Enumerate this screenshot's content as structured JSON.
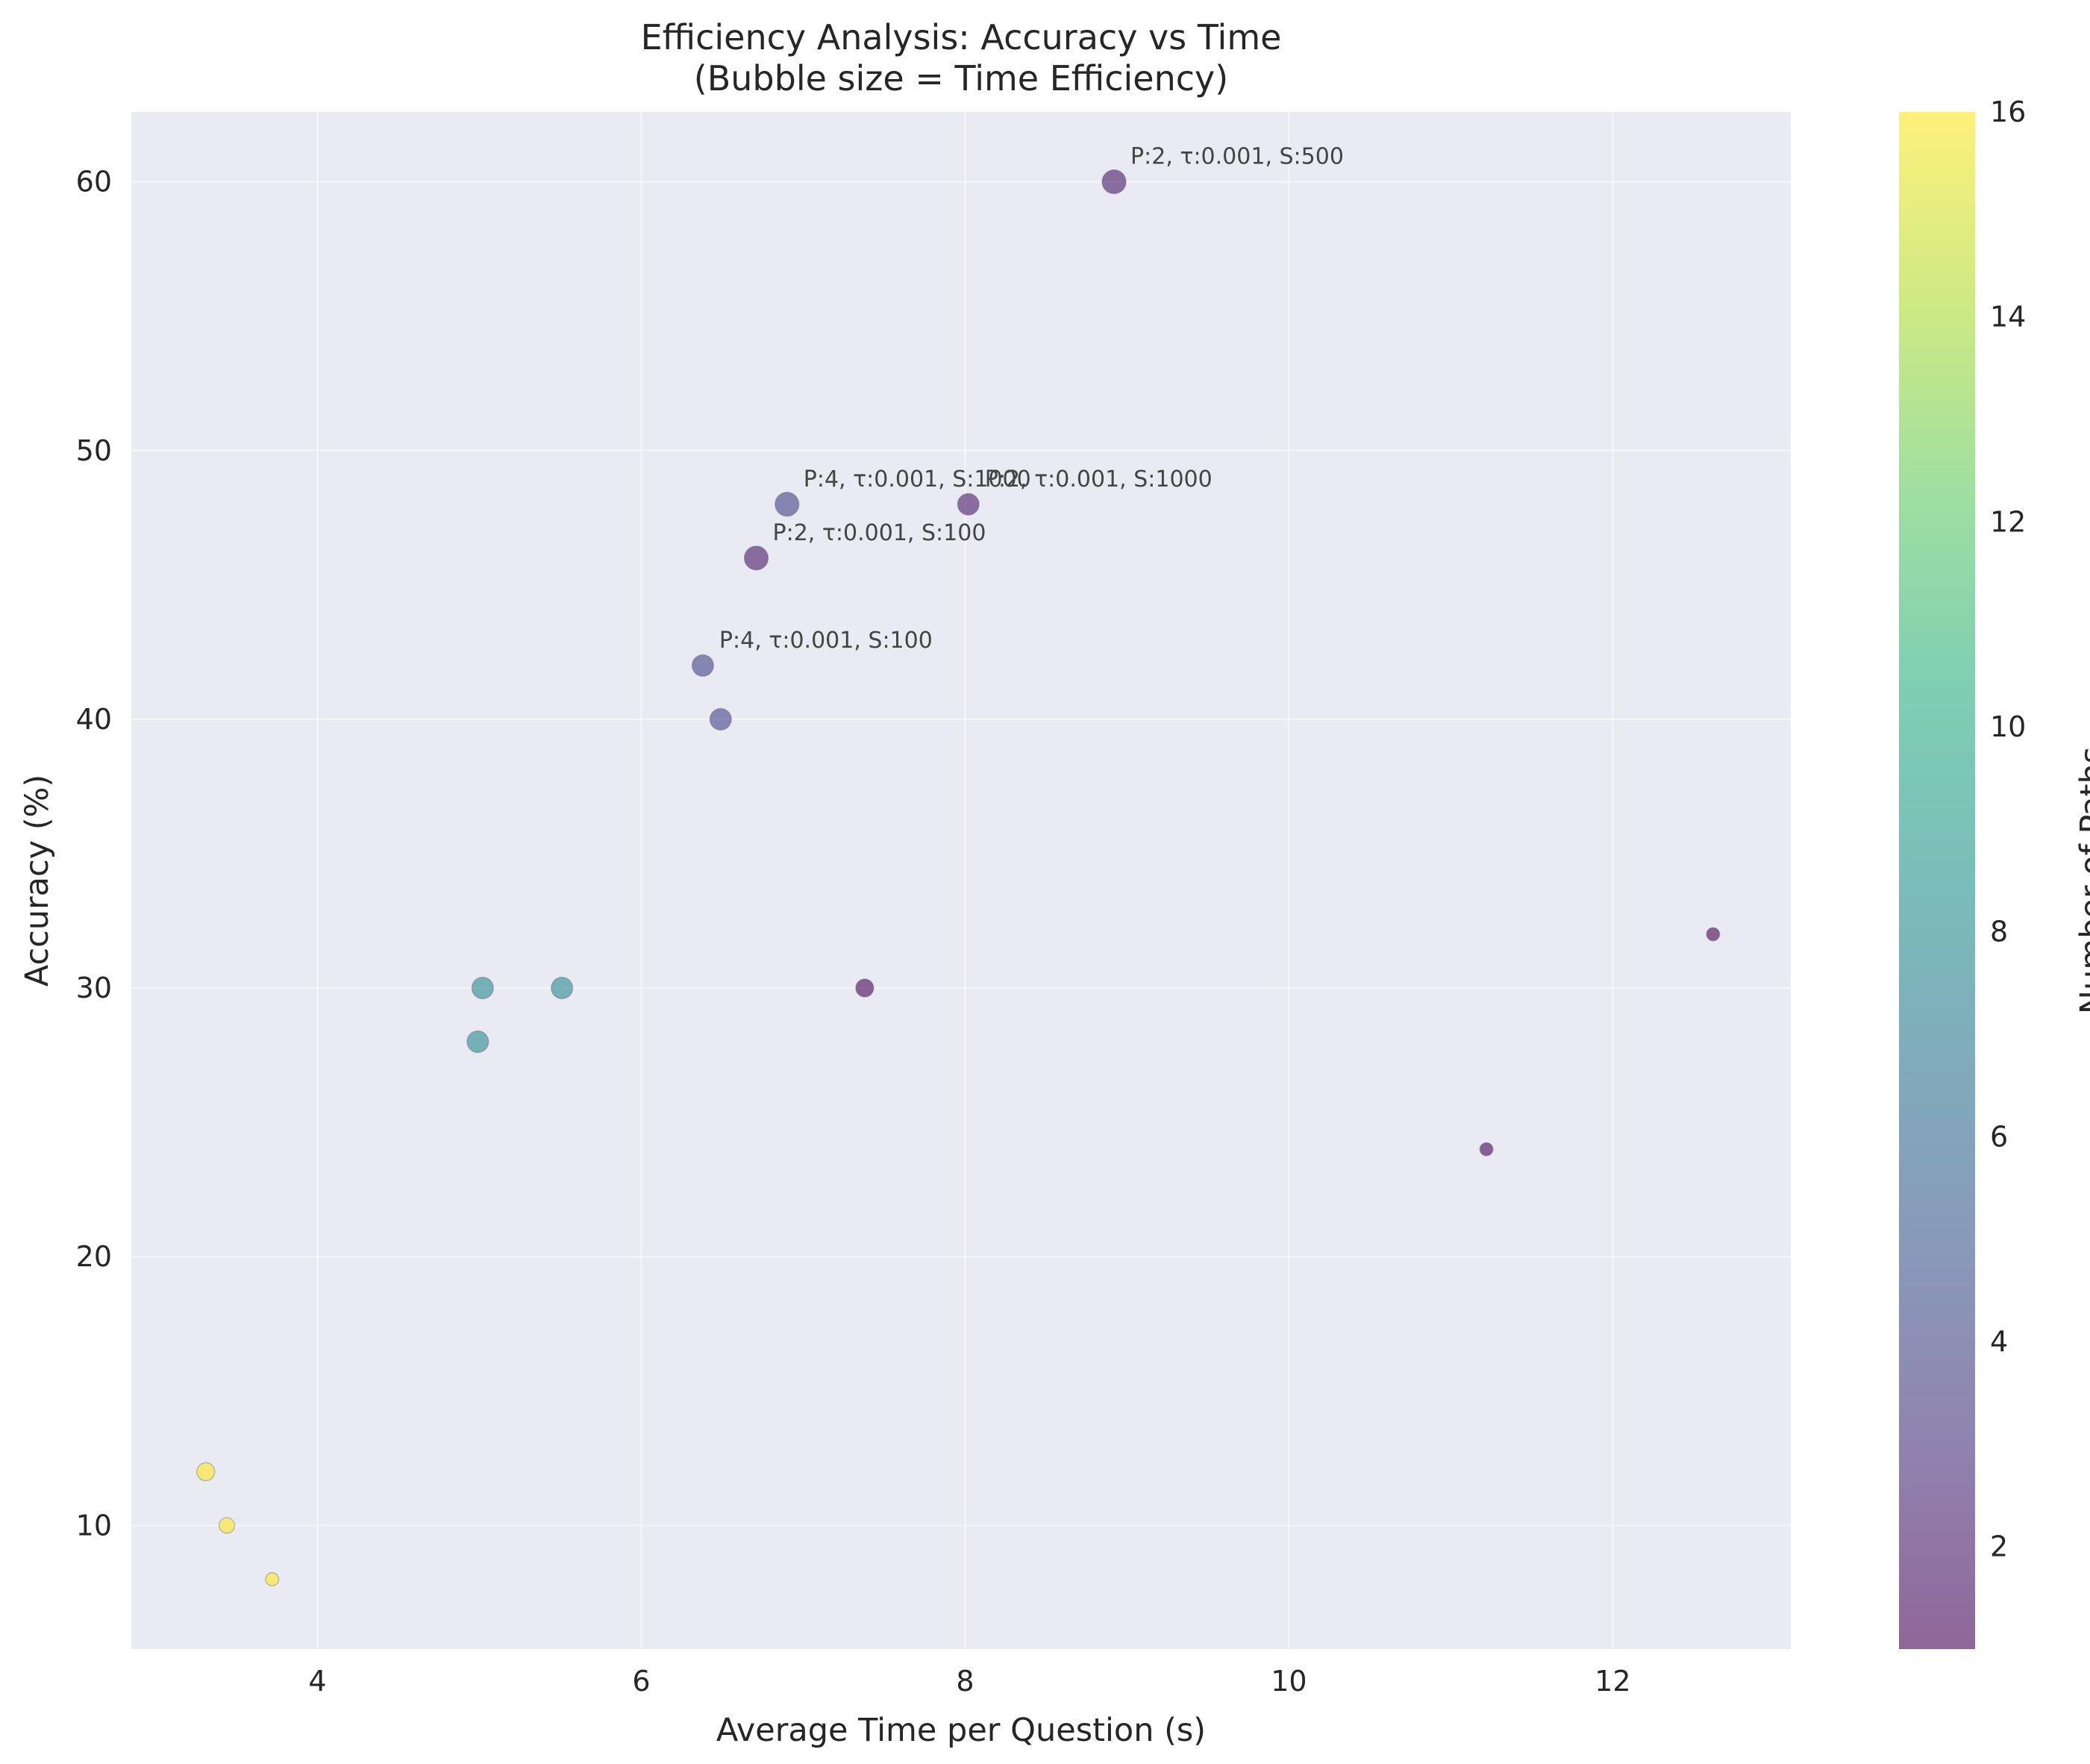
{
  "chart_data": {
    "type": "scatter",
    "title": "Efficiency Analysis: Accuracy vs Time",
    "subtitle": "(Bubble size = Time Efficiency)",
    "xlabel": "Average Time per Question (s)",
    "ylabel": "Accuracy (%)",
    "xlim": [
      2.85,
      13.1
    ],
    "ylim": [
      5.4,
      62.6
    ],
    "xticks": [
      4,
      6,
      8,
      10,
      12
    ],
    "yticks": [
      10,
      20,
      30,
      40,
      50,
      60
    ],
    "grid": true,
    "background": "#eaeaf2",
    "colorbar": {
      "label": "Number of Paths",
      "colormap": "viridis",
      "alpha": 0.6,
      "min": 1,
      "max": 16,
      "ticks": [
        2,
        4,
        6,
        8,
        10,
        12,
        14,
        16
      ]
    },
    "points": [
      {
        "x": 8.92,
        "y": 60,
        "paths": 2,
        "size": 10,
        "label": "P:2, τ:0.001, S:500"
      },
      {
        "x": 6.9,
        "y": 48,
        "paths": 4,
        "size": 10,
        "label": "P:4, τ:0.001, S:1000"
      },
      {
        "x": 8.02,
        "y": 48,
        "paths": 2,
        "size": 9,
        "label": "P:2, τ:0.001, S:1000"
      },
      {
        "x": 6.71,
        "y": 46,
        "paths": 2,
        "size": 10,
        "label": "P:2, τ:0.001, S:100"
      },
      {
        "x": 6.38,
        "y": 42,
        "paths": 4,
        "size": 9,
        "label": "P:4, τ:0.001, S:100"
      },
      {
        "x": 6.49,
        "y": 40,
        "paths": 4,
        "size": 9,
        "label": ""
      },
      {
        "x": 5.02,
        "y": 30,
        "paths": 8,
        "size": 9,
        "label": ""
      },
      {
        "x": 5.51,
        "y": 30,
        "paths": 8,
        "size": 9,
        "label": ""
      },
      {
        "x": 4.99,
        "y": 28,
        "paths": 8,
        "size": 9,
        "label": ""
      },
      {
        "x": 7.38,
        "y": 30,
        "paths": 1,
        "size": 7.5,
        "label": ""
      },
      {
        "x": 12.62,
        "y": 32,
        "paths": 1,
        "size": 5.5,
        "label": ""
      },
      {
        "x": 11.22,
        "y": 24,
        "paths": 1,
        "size": 5.5,
        "label": ""
      },
      {
        "x": 3.31,
        "y": 12,
        "paths": 16,
        "size": 7.5,
        "label": ""
      },
      {
        "x": 3.44,
        "y": 10,
        "paths": 16,
        "size": 6.5,
        "label": ""
      },
      {
        "x": 3.72,
        "y": 8,
        "paths": 16,
        "size": 5.5,
        "label": ""
      }
    ]
  }
}
